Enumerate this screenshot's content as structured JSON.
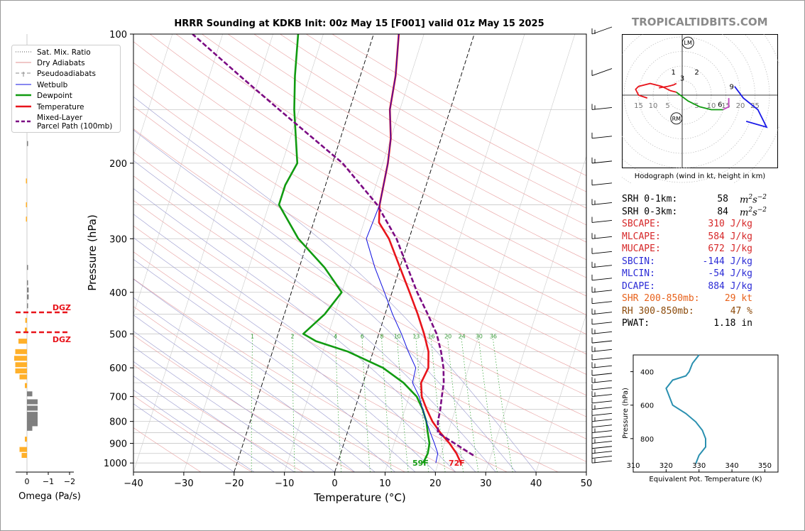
{
  "branding": "TROPICALTIDBITS.COM",
  "chart_data": {
    "type": "line",
    "title": "HRRR Sounding at KDKB Init: 00z May 15 [F001] valid 01z May 15 2025",
    "xlabel": "Temperature (°C)",
    "ylabel": "Pressure (hPa)",
    "xlim": [
      -40,
      50
    ],
    "ylim": [
      1050,
      100
    ],
    "y_log_scale": true,
    "x_ticks": [
      "−40",
      "−30",
      "−20",
      "−10",
      "0",
      "10",
      "20",
      "30",
      "40",
      "50"
    ],
    "y_ticks": [
      "100",
      "200",
      "300",
      "400",
      "500",
      "600",
      "700",
      "800",
      "900",
      "1000"
    ],
    "legend": [
      "Sat. Mix. Ratio",
      "Dry Adiabats",
      "Pseudoadiabats",
      "Wetbulb",
      "Dewpoint",
      "Temperature",
      "Mixed-Layer\nParcel Path (100mb)"
    ],
    "legend_position": "upper-left",
    "mixing_ratio_labels": [
      "1",
      "2",
      "4",
      "6",
      "8",
      "10",
      "13",
      "16",
      "20",
      "24",
      "30",
      "36"
    ],
    "surface_dewpoint_label": "59F",
    "surface_temperature_label": "72F",
    "series": [
      {
        "name": "Temperature",
        "color": "#e8141b",
        "points": [
          [
            24.5,
            1000
          ],
          [
            23,
            950
          ],
          [
            21,
            900
          ],
          [
            18.5,
            850
          ],
          [
            16.2,
            800
          ],
          [
            14.3,
            750
          ],
          [
            12.5,
            700
          ],
          [
            11.5,
            650
          ],
          [
            12,
            600
          ],
          [
            11,
            550
          ],
          [
            9,
            500
          ],
          [
            6.5,
            450
          ],
          [
            3.5,
            400
          ],
          [
            0,
            350
          ],
          [
            -4,
            300
          ],
          [
            -7,
            275
          ],
          [
            -8,
            250
          ],
          [
            -9,
            200
          ],
          [
            -10,
            175
          ],
          [
            -12,
            150
          ],
          [
            -13,
            125
          ],
          [
            -15,
            100
          ]
        ]
      },
      {
        "name": "Dewpoint",
        "color": "#119b11",
        "points": [
          [
            17,
            1000
          ],
          [
            17.3,
            950
          ],
          [
            17,
            900
          ],
          [
            16,
            850
          ],
          [
            15,
            800
          ],
          [
            13.5,
            750
          ],
          [
            11.5,
            700
          ],
          [
            8,
            650
          ],
          [
            3,
            600
          ],
          [
            -5,
            550
          ],
          [
            -12,
            520
          ],
          [
            -15,
            500
          ],
          [
            -12,
            450
          ],
          [
            -10,
            400
          ],
          [
            -15,
            350
          ],
          [
            -22,
            300
          ],
          [
            -28,
            250
          ],
          [
            -28,
            225
          ],
          [
            -27,
            200
          ],
          [
            -31,
            150
          ],
          [
            -33,
            125
          ],
          [
            -35,
            100
          ]
        ]
      },
      {
        "name": "Wetbulb",
        "color": "#1010e0",
        "points": [
          [
            19.5,
            1000
          ],
          [
            19.3,
            950
          ],
          [
            18,
            900
          ],
          [
            16.5,
            850
          ],
          [
            15,
            800
          ],
          [
            13.5,
            750
          ],
          [
            12,
            700
          ],
          [
            9.8,
            650
          ],
          [
            9.5,
            600
          ],
          [
            7,
            550
          ],
          [
            4.5,
            500
          ],
          [
            1.5,
            450
          ],
          [
            -1.5,
            400
          ],
          [
            -5,
            350
          ],
          [
            -8.5,
            300
          ],
          [
            -8,
            250
          ],
          [
            -9,
            200
          ],
          [
            -10,
            175
          ],
          [
            -12,
            150
          ],
          [
            -13,
            125
          ],
          [
            -15,
            100
          ]
        ]
      },
      {
        "name": "Mixed-Layer Parcel Path (100mb)",
        "color": "#7b0a83",
        "points": [
          [
            26.5,
            960
          ],
          [
            22,
            900
          ],
          [
            18,
            850
          ],
          [
            17.3,
            800
          ],
          [
            17,
            750
          ],
          [
            16.5,
            700
          ],
          [
            16,
            650
          ],
          [
            15,
            600
          ],
          [
            13.5,
            550
          ],
          [
            11.5,
            500
          ],
          [
            8.5,
            450
          ],
          [
            5,
            400
          ],
          [
            1.5,
            350
          ],
          [
            -2.5,
            300
          ],
          [
            -8.5,
            250
          ],
          [
            -18,
            200
          ],
          [
            -34,
            150
          ],
          [
            -44,
            125
          ],
          [
            -56,
            100
          ]
        ]
      }
    ]
  },
  "omega_chart": {
    "xlabel": "Omega (Pa/s)",
    "x_ticks": [
      "0",
      "−1",
      "−2"
    ],
    "dgz_label": "DGZ",
    "dgz_levels_hpa": [
      450,
      500
    ],
    "bars_hpa_value": [
      [
        140,
        0.12
      ],
      [
        180,
        0.05
      ],
      [
        220,
        -0.05
      ],
      [
        250,
        -0.05
      ],
      [
        270,
        -0.05
      ],
      [
        350,
        0.02
      ],
      [
        380,
        0.05
      ],
      [
        395,
        0.08
      ],
      [
        410,
        0.08
      ],
      [
        430,
        0.05
      ],
      [
        465,
        -0.08
      ],
      [
        490,
        -0.1
      ],
      [
        520,
        -0.4
      ],
      [
        550,
        -0.55
      ],
      [
        570,
        -0.6
      ],
      [
        590,
        -0.55
      ],
      [
        610,
        -0.55
      ],
      [
        630,
        -0.35
      ],
      [
        660,
        -0.1
      ],
      [
        690,
        0.25
      ],
      [
        720,
        0.5
      ],
      [
        745,
        0.5
      ],
      [
        770,
        0.5
      ],
      [
        790,
        0.5
      ],
      [
        810,
        0.5
      ],
      [
        830,
        0.25
      ],
      [
        880,
        -0.1
      ],
      [
        930,
        -0.35
      ],
      [
        960,
        -0.25
      ]
    ]
  },
  "hodograph": {
    "caption": "Hodograph (wind in kt, height in km)",
    "ring_labels_left": [
      "15",
      "10",
      "5"
    ],
    "ring_labels_right": [
      "5",
      "10",
      "15",
      "20",
      "25"
    ],
    "markers": [
      "LM",
      "RM"
    ],
    "height_labels": [
      "1",
      "2",
      "3",
      "6",
      "9"
    ],
    "segments_kt": [
      {
        "color": "#e8141b",
        "points": [
          [
            -2,
            1
          ],
          [
            -4,
            1.5
          ],
          [
            -7,
            3
          ],
          [
            -11,
            4
          ],
          [
            -15,
            3
          ],
          [
            -16,
            2
          ],
          [
            -15,
            0
          ],
          [
            -12,
            -1
          ]
        ]
      },
      {
        "color": "#e8141b",
        "points": [
          [
            -2,
            4
          ],
          [
            -3,
            3.5
          ],
          [
            -5,
            3
          ],
          [
            -8,
            2.5
          ]
        ]
      },
      {
        "color": "#119b11",
        "points": [
          [
            -2,
            1
          ],
          [
            2,
            -2
          ],
          [
            6,
            -4
          ],
          [
            10,
            -5
          ],
          [
            14,
            -5
          ]
        ]
      },
      {
        "color": "#c044c0",
        "points": [
          [
            14,
            -5
          ],
          [
            16,
            -4
          ],
          [
            16,
            -1
          ]
        ]
      },
      {
        "color": "#1a1ae8",
        "points": [
          [
            18,
            3
          ],
          [
            21,
            -1
          ],
          [
            26,
            -5
          ],
          [
            29,
            -11
          ],
          [
            22,
            -9
          ]
        ]
      }
    ]
  },
  "stats": [
    {
      "label": "SRH 0-1km:",
      "value": "58",
      "unit": "m2s-2",
      "color": "#000000"
    },
    {
      "label": "SRH 0-3km:",
      "value": "84",
      "unit": "m2s-2",
      "color": "#000000"
    },
    {
      "label": "SBCAPE:",
      "value": "310 J/kg",
      "color": "#d62728"
    },
    {
      "label": "MLCAPE:",
      "value": "584 J/kg",
      "color": "#d62728"
    },
    {
      "label": "MUCAPE:",
      "value": "672 J/kg",
      "color": "#d62728"
    },
    {
      "label": "SBCIN:",
      "value": "-144 J/kg",
      "color": "#2b2bd6"
    },
    {
      "label": "MLCIN:",
      "value": "-54 J/kg",
      "color": "#2b2bd6"
    },
    {
      "label": "DCAPE:",
      "value": "884 J/kg",
      "color": "#2b2bd6"
    },
    {
      "label": "SHR 200-850mb:",
      "value": "29 kt",
      "color": "#e8611a"
    },
    {
      "label": "RH 300-850mb:",
      "value": "47 %",
      "color": "#8b4a0a"
    },
    {
      "label": "PWAT:",
      "value": "1.18 in",
      "color": "#000000"
    }
  ],
  "theta_e_chart": {
    "xlabel": "Equivalent Pot. Temperature (K)",
    "ylabel": "Pressure (hPa)",
    "x_ticks": [
      "310",
      "320",
      "330",
      "340",
      "350"
    ],
    "y_ticks": [
      "400",
      "600",
      "800"
    ],
    "xlim": [
      310,
      354
    ],
    "ylim": [
      1000,
      300
    ],
    "series": [
      {
        "color": "#2a90b0",
        "points": [
          [
            330,
            300
          ],
          [
            328,
            350
          ],
          [
            327,
            400
          ],
          [
            326,
            425
          ],
          [
            322,
            450
          ],
          [
            320,
            500
          ],
          [
            321,
            550
          ],
          [
            322,
            600
          ],
          [
            326,
            650
          ],
          [
            329,
            700
          ],
          [
            331,
            750
          ],
          [
            332,
            800
          ],
          [
            332,
            850
          ],
          [
            330,
            900
          ],
          [
            329,
            950
          ]
        ]
      }
    ]
  }
}
